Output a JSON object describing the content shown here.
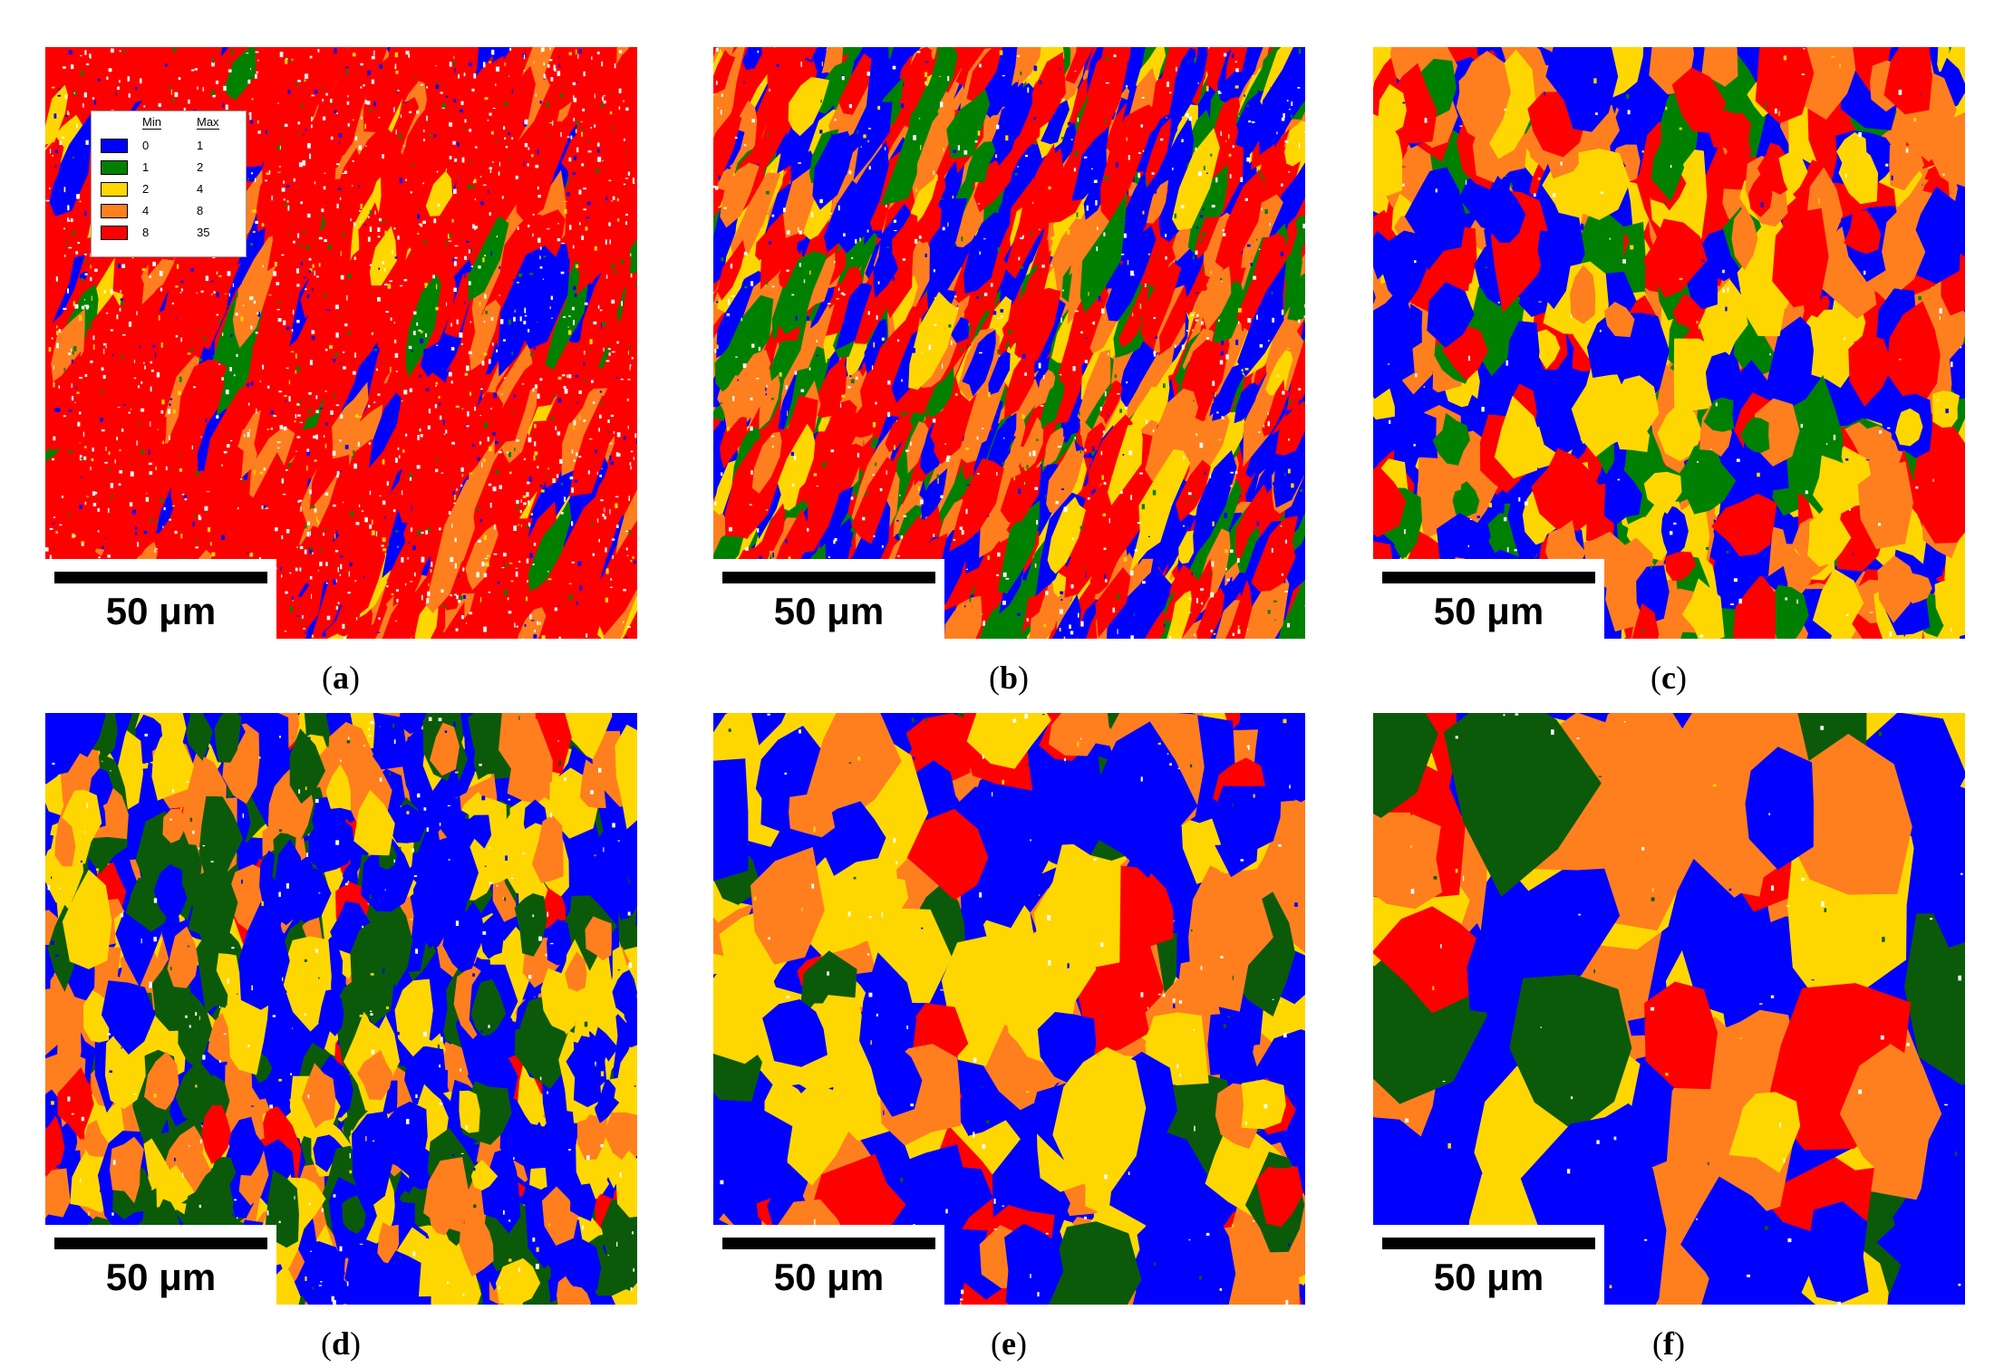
{
  "legend": {
    "min_header": "Min",
    "max_header": "Max",
    "rows": [
      {
        "min": "0",
        "max": "1",
        "color": "#0000ff"
      },
      {
        "min": "1",
        "max": "2",
        "color": "#008000"
      },
      {
        "min": "2",
        "max": "4",
        "color": "#ffd700"
      },
      {
        "min": "4",
        "max": "8",
        "color": "#ff7f1f"
      },
      {
        "min": "8",
        "max": "35",
        "color": "#ff0000"
      }
    ]
  },
  "panels": [
    {
      "caption": "a",
      "scale_label": "50 μm",
      "weights": [
        1,
        0.4,
        0.4,
        1.2,
        14
      ],
      "grain": 22,
      "white": 0.12,
      "aniso": 3.2,
      "dark_green": false
    },
    {
      "caption": "b",
      "scale_label": "50 μm",
      "weights": [
        3,
        2,
        1.2,
        3,
        4.5
      ],
      "grain": 20,
      "white": 0.05,
      "aniso": 2.8,
      "dark_green": false
    },
    {
      "caption": "c",
      "scale_label": "50 μm",
      "weights": [
        4,
        1.5,
        2.5,
        3,
        3
      ],
      "grain": 34,
      "white": 0.01,
      "aniso": 1.6,
      "dark_green": false
    },
    {
      "caption": "d",
      "scale_label": "50 μm",
      "weights": [
        5,
        2.5,
        3,
        2.5,
        0.5
      ],
      "grain": 28,
      "white": 0.02,
      "aniso": 1.8,
      "dark_green": true
    },
    {
      "caption": "e",
      "scale_label": "50 μm",
      "weights": [
        4,
        1.5,
        3,
        3,
        1.5
      ],
      "grain": 52,
      "white": 0.01,
      "aniso": 1.3,
      "dark_green": true
    },
    {
      "caption": "f",
      "scale_label": "50 μm",
      "weights": [
        3,
        1.5,
        3,
        2.5,
        1.5
      ],
      "grain": 88,
      "white": 0.005,
      "aniso": 1.4,
      "dark_green": true
    }
  ]
}
